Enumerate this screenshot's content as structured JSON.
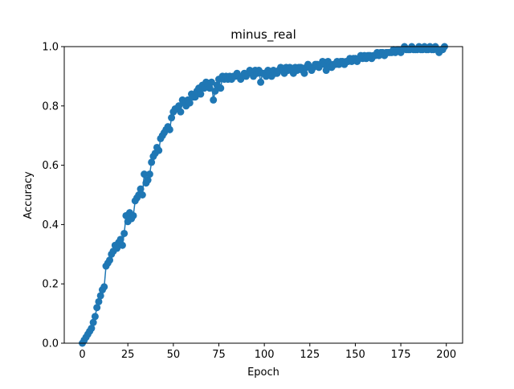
{
  "chart_data": {
    "type": "line",
    "title": "minus_real",
    "xlabel": "Epoch",
    "ylabel": "Accuracy",
    "x": [
      0,
      1,
      2,
      3,
      4,
      5,
      6,
      7,
      8,
      9,
      10,
      11,
      12,
      13,
      14,
      15,
      16,
      17,
      18,
      19,
      20,
      21,
      22,
      23,
      24,
      25,
      26,
      27,
      28,
      29,
      30,
      31,
      32,
      33,
      34,
      35,
      36,
      37,
      38,
      39,
      40,
      41,
      42,
      43,
      44,
      45,
      46,
      47,
      48,
      49,
      50,
      51,
      52,
      53,
      54,
      55,
      56,
      57,
      58,
      59,
      60,
      61,
      62,
      63,
      64,
      65,
      66,
      67,
      68,
      69,
      70,
      71,
      72,
      73,
      74,
      75,
      76,
      77,
      78,
      79,
      80,
      81,
      82,
      83,
      84,
      85,
      86,
      87,
      88,
      89,
      90,
      91,
      92,
      93,
      94,
      95,
      96,
      97,
      98,
      99,
      100,
      101,
      102,
      103,
      104,
      105,
      106,
      107,
      108,
      109,
      110,
      111,
      112,
      113,
      114,
      115,
      116,
      117,
      118,
      119,
      120,
      121,
      122,
      123,
      124,
      125,
      126,
      127,
      128,
      129,
      130,
      131,
      132,
      133,
      134,
      135,
      136,
      137,
      138,
      139,
      140,
      141,
      142,
      143,
      144,
      145,
      146,
      147,
      148,
      149,
      150,
      151,
      152,
      153,
      154,
      155,
      156,
      157,
      158,
      159,
      160,
      161,
      162,
      163,
      164,
      165,
      166,
      167,
      168,
      169,
      170,
      171,
      172,
      173,
      174,
      175,
      176,
      177,
      178,
      179,
      180,
      181,
      182,
      183,
      184,
      185,
      186,
      187,
      188,
      189,
      190,
      191,
      192,
      193,
      194,
      195,
      196,
      197,
      198,
      199
    ],
    "series": [
      {
        "color": "#1f77b4",
        "values": [
          0.0,
          0.01,
          0.02,
          0.03,
          0.04,
          0.05,
          0.07,
          0.09,
          0.12,
          0.14,
          0.16,
          0.18,
          0.19,
          0.26,
          0.27,
          0.28,
          0.3,
          0.31,
          0.33,
          0.32,
          0.34,
          0.35,
          0.33,
          0.37,
          0.43,
          0.41,
          0.44,
          0.42,
          0.43,
          0.48,
          0.49,
          0.5,
          0.52,
          0.5,
          0.57,
          0.54,
          0.55,
          0.57,
          0.61,
          0.63,
          0.64,
          0.66,
          0.65,
          0.69,
          0.7,
          0.71,
          0.72,
          0.73,
          0.72,
          0.76,
          0.78,
          0.79,
          0.79,
          0.8,
          0.78,
          0.82,
          0.81,
          0.8,
          0.82,
          0.81,
          0.84,
          0.83,
          0.83,
          0.85,
          0.86,
          0.84,
          0.87,
          0.86,
          0.88,
          0.87,
          0.86,
          0.88,
          0.82,
          0.85,
          0.87,
          0.89,
          0.86,
          0.9,
          0.89,
          0.9,
          0.89,
          0.9,
          0.89,
          0.9,
          0.9,
          0.91,
          0.9,
          0.89,
          0.9,
          0.91,
          0.9,
          0.91,
          0.92,
          0.91,
          0.9,
          0.92,
          0.91,
          0.92,
          0.88,
          0.91,
          0.91,
          0.9,
          0.92,
          0.91,
          0.9,
          0.92,
          0.91,
          0.91,
          0.92,
          0.93,
          0.92,
          0.91,
          0.93,
          0.92,
          0.93,
          0.92,
          0.91,
          0.93,
          0.92,
          0.93,
          0.93,
          0.92,
          0.91,
          0.93,
          0.94,
          0.93,
          0.92,
          0.93,
          0.94,
          0.94,
          0.93,
          0.94,
          0.95,
          0.94,
          0.92,
          0.95,
          0.94,
          0.93,
          0.94,
          0.94,
          0.95,
          0.94,
          0.95,
          0.95,
          0.94,
          0.95,
          0.95,
          0.96,
          0.95,
          0.96,
          0.96,
          0.95,
          0.96,
          0.97,
          0.96,
          0.97,
          0.96,
          0.97,
          0.97,
          0.96,
          0.97,
          0.97,
          0.98,
          0.97,
          0.98,
          0.98,
          0.97,
          0.98,
          0.98,
          0.98,
          0.98,
          0.99,
          0.98,
          0.99,
          0.99,
          0.98,
          0.99,
          1.0,
          0.99,
          0.99,
          0.99,
          1.0,
          0.99,
          0.99,
          0.99,
          1.0,
          0.99,
          0.99,
          1.0,
          0.99,
          0.99,
          1.0,
          0.99,
          0.99,
          1.0,
          0.99,
          0.98,
          0.99,
          0.99,
          1.0
        ]
      }
    ],
    "xlim": [
      -9.95,
      208.95
    ],
    "xticks": [
      0,
      25,
      50,
      75,
      100,
      125,
      150,
      175,
      200
    ],
    "ylim": [
      0,
      1
    ],
    "yticks": [
      {
        "value": 0,
        "label": "0.0"
      },
      0.2,
      0.4,
      0.6,
      0.8,
      {
        "value": 1,
        "label": "1.0"
      }
    ],
    "grid": false,
    "markers": true
  }
}
